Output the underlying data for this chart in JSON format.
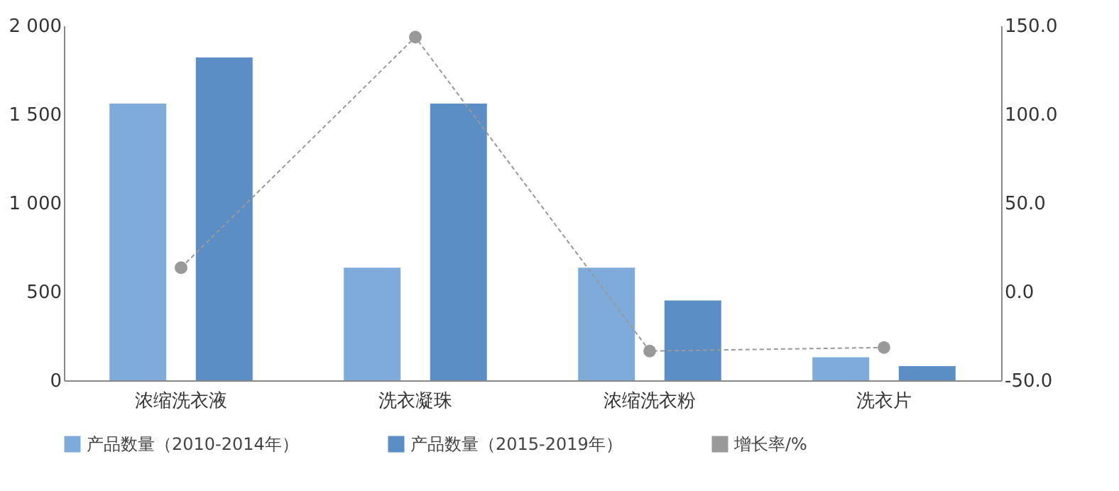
{
  "chart_data": {
    "type": "bar",
    "categories": [
      "浓缩洗衣液",
      "洗衣凝珠",
      "浓缩洗衣粉",
      "洗衣片"
    ],
    "series": [
      {
        "name": "产品数量（2010-2014年）",
        "color": "#7eabd9",
        "values": [
          1560,
          635,
          635,
          130
        ]
      },
      {
        "name": "产品数量（2015-2019年）",
        "color": "#5b8ec4",
        "values": [
          1820,
          1560,
          450,
          80
        ]
      },
      {
        "name": "增长率/%",
        "type": "line",
        "axis": "y2",
        "color": "#999999",
        "marker": "circle",
        "line_style": "dashed",
        "values": [
          13.5,
          143.5,
          -33.5,
          -31.5
        ]
      }
    ],
    "ylim": [
      0,
      2000
    ],
    "yticks": [
      {
        "value": 0,
        "label": "0"
      },
      {
        "value": 500,
        "label": "500"
      },
      {
        "value": 1000,
        "label": "1 000"
      },
      {
        "value": 1500,
        "label": "1 500"
      },
      {
        "value": 2000,
        "label": "2 000"
      }
    ],
    "y2lim": [
      -50,
      150
    ],
    "y2ticks": [
      {
        "value": -50,
        "label": "-50.0"
      },
      {
        "value": 0,
        "label": "0.0"
      },
      {
        "value": 50,
        "label": "50.0"
      },
      {
        "value": 100,
        "label": "100.0"
      },
      {
        "value": 150,
        "label": "150.0"
      }
    ],
    "grid": false,
    "legend": "bottom"
  }
}
